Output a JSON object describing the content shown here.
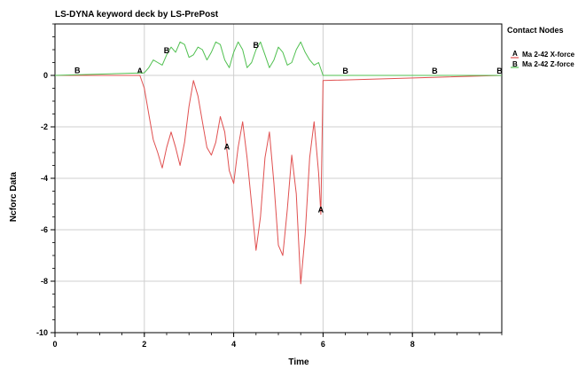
{
  "chart_data": {
    "type": "line",
    "title": "LS-DYNA keyword deck by LS-PrePost",
    "xlabel": "Time",
    "ylabel": "Ncforc Data",
    "xlim": [
      0,
      10
    ],
    "ylim": [
      -10,
      2
    ],
    "x_ticks": [
      0,
      2,
      4,
      6,
      8
    ],
    "y_ticks": [
      0,
      -2,
      -4,
      -6,
      -8,
      -10
    ],
    "grid": true,
    "legend": {
      "title": "Contact Nodes",
      "placement": "right",
      "entries": [
        {
          "marker": "A",
          "label": "Ma 2-42 X-force",
          "color": "#e05050"
        },
        {
          "marker": "B",
          "label": "Ma 2-42 Z-force",
          "color": "#50c050"
        }
      ]
    },
    "series": [
      {
        "name": "Ma 2-42 X-force",
        "marker": "A",
        "color": "#e05050",
        "marker_x": [
          1.9,
          3.85,
          5.95
        ],
        "x": [
          0,
          1.9,
          2.0,
          2.1,
          2.2,
          2.3,
          2.4,
          2.5,
          2.6,
          2.7,
          2.8,
          2.9,
          3.0,
          3.1,
          3.2,
          3.3,
          3.4,
          3.5,
          3.6,
          3.7,
          3.8,
          3.9,
          4.0,
          4.1,
          4.2,
          4.3,
          4.4,
          4.5,
          4.6,
          4.7,
          4.8,
          4.9,
          5.0,
          5.1,
          5.2,
          5.3,
          5.4,
          5.5,
          5.6,
          5.7,
          5.8,
          5.9,
          5.95,
          6.0,
          10.0
        ],
        "y": [
          0,
          0,
          -0.5,
          -1.5,
          -2.5,
          -3.0,
          -3.6,
          -2.8,
          -2.2,
          -2.8,
          -3.5,
          -2.6,
          -1.2,
          -0.2,
          -0.8,
          -1.8,
          -2.8,
          -3.1,
          -2.6,
          -1.6,
          -2.2,
          -3.7,
          -4.2,
          -2.8,
          -1.8,
          -3.2,
          -5.0,
          -6.8,
          -5.5,
          -3.2,
          -2.2,
          -4.2,
          -6.6,
          -7.0,
          -5.2,
          -3.1,
          -4.6,
          -8.1,
          -6.2,
          -3.2,
          -1.8,
          -3.8,
          -5.4,
          -0.2,
          0
        ]
      },
      {
        "name": "Ma 2-42 Z-force",
        "marker": "B",
        "color": "#50c050",
        "marker_x": [
          0.5,
          2.5,
          4.5,
          6.5,
          8.5,
          9.95
        ],
        "x": [
          0,
          2.0,
          2.1,
          2.2,
          2.3,
          2.4,
          2.5,
          2.6,
          2.7,
          2.8,
          2.9,
          3.0,
          3.1,
          3.2,
          3.3,
          3.4,
          3.5,
          3.6,
          3.7,
          3.8,
          3.9,
          4.0,
          4.1,
          4.2,
          4.3,
          4.4,
          4.5,
          4.6,
          4.7,
          4.8,
          4.9,
          5.0,
          5.1,
          5.2,
          5.3,
          5.4,
          5.5,
          5.6,
          5.7,
          5.8,
          5.9,
          6.0,
          10.0
        ],
        "y": [
          0,
          0.1,
          0.3,
          0.6,
          0.5,
          0.4,
          0.8,
          1.1,
          0.9,
          1.3,
          1.2,
          0.7,
          0.8,
          1.1,
          1.0,
          0.6,
          0.9,
          1.3,
          1.2,
          0.6,
          0.3,
          0.9,
          1.3,
          1.0,
          0.3,
          0.5,
          1.0,
          1.3,
          0.8,
          0.3,
          0.6,
          1.1,
          0.9,
          0.4,
          0.5,
          1.0,
          1.3,
          0.9,
          0.6,
          0.4,
          0.5,
          0.0,
          0.0
        ]
      }
    ]
  }
}
